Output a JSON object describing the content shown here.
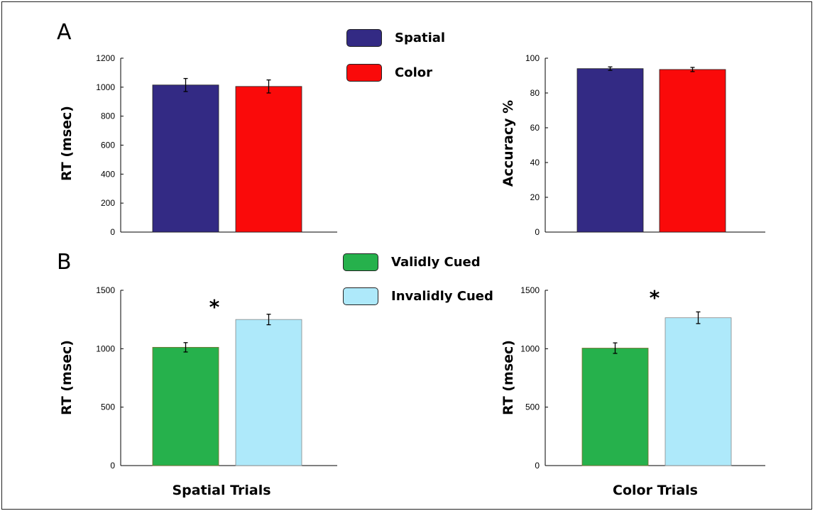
{
  "panels": {
    "a_label": "A",
    "b_label": "B"
  },
  "legend_a": [
    {
      "label": "Spatial",
      "color": "#332a84"
    },
    {
      "label": "Color",
      "color": "#fa0a0a"
    }
  ],
  "legend_b": [
    {
      "label": "Validly Cued",
      "color": "#26b14c"
    },
    {
      "label": "Invalidly Cued",
      "color": "#aee9fa"
    }
  ],
  "chart_data": [
    {
      "type": "bar",
      "categories": [
        "Spatial",
        "Color"
      ],
      "values": [
        1015,
        1005
      ],
      "errors": [
        45,
        45
      ],
      "colors": [
        "#332a84",
        "#fa0a0a"
      ],
      "title": "",
      "xlabel": "",
      "ylabel": "RT (msec)",
      "ylim": [
        0,
        1200
      ],
      "yticks": [
        0,
        200,
        400,
        600,
        800,
        1000,
        1200
      ],
      "significance": ""
    },
    {
      "type": "bar",
      "categories": [
        "Spatial",
        "Color"
      ],
      "values": [
        94,
        93.5
      ],
      "errors": [
        1,
        1.2
      ],
      "colors": [
        "#332a84",
        "#fa0a0a"
      ],
      "title": "",
      "xlabel": "",
      "ylabel": "Accuracy %",
      "ylim": [
        0,
        100
      ],
      "yticks": [
        0,
        20,
        40,
        60,
        80,
        100
      ],
      "significance": ""
    },
    {
      "type": "bar",
      "categories": [
        "Validly Cued",
        "Invalidly Cued"
      ],
      "values": [
        1012,
        1250
      ],
      "errors": [
        40,
        45
      ],
      "colors": [
        "#26b14c",
        "#aee9fa"
      ],
      "title": "",
      "xlabel": "Spatial Trials",
      "ylabel": "RT (msec)",
      "ylim": [
        0,
        1500
      ],
      "yticks": [
        0,
        500,
        1000,
        1500
      ],
      "significance": "*"
    },
    {
      "type": "bar",
      "categories": [
        "Validly Cued",
        "Invalidly Cued"
      ],
      "values": [
        1005,
        1265
      ],
      "errors": [
        45,
        50
      ],
      "colors": [
        "#26b14c",
        "#aee9fa"
      ],
      "title": "",
      "xlabel": "Color Trials",
      "ylabel": "RT (msec)",
      "ylim": [
        0,
        1500
      ],
      "yticks": [
        0,
        500,
        1000,
        1500
      ],
      "significance": "*"
    }
  ]
}
